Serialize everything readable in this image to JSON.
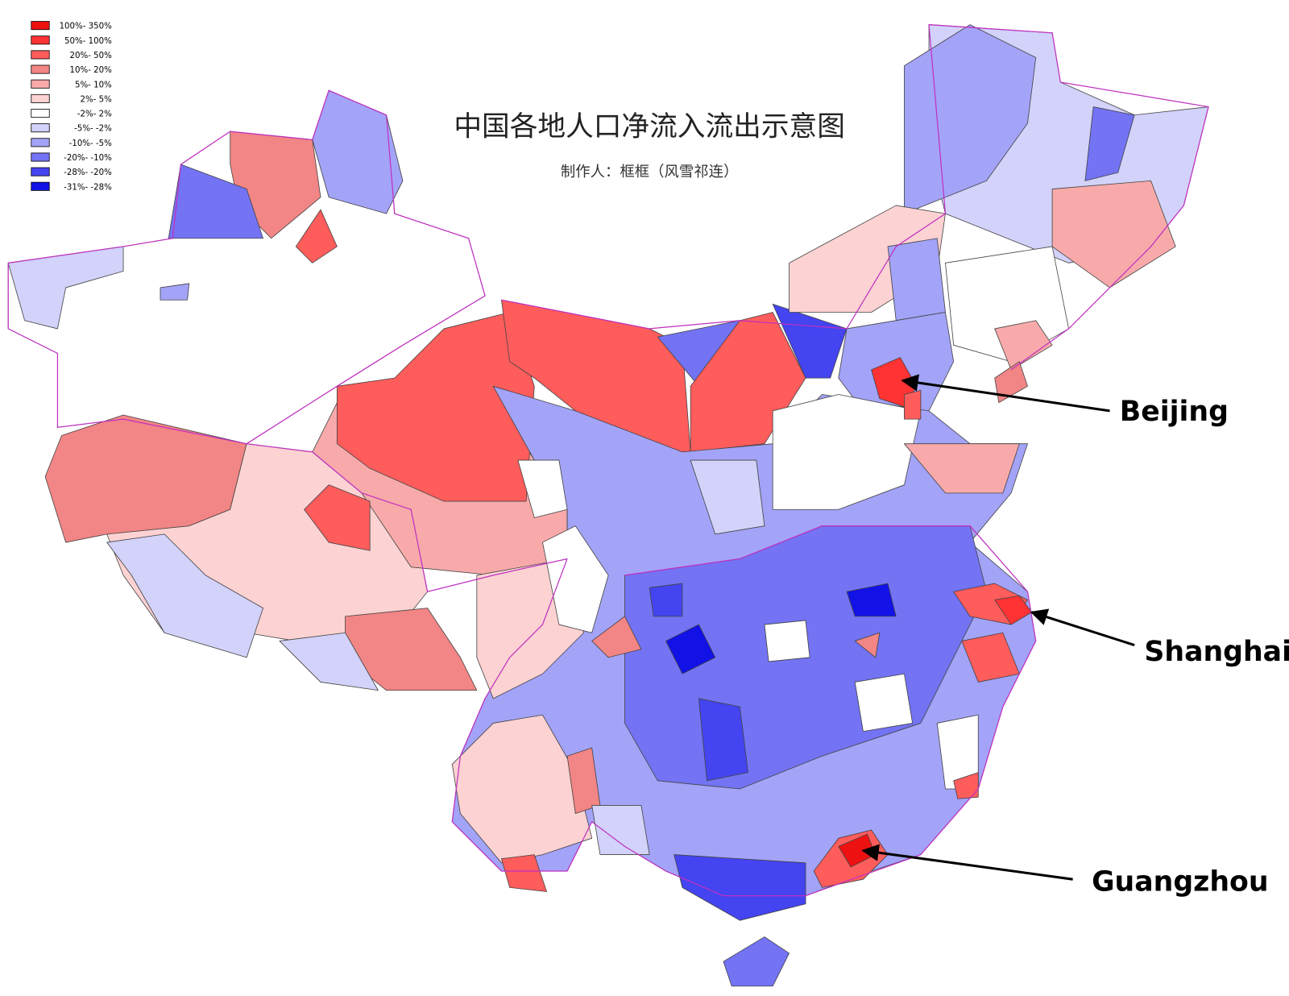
{
  "title": "中国各地人口净流入流出示意图",
  "subtitle": "制作人：框框（风雪祁连）",
  "legend": {
    "items": [
      {
        "label": "100%- 350%",
        "color": "#ee1111"
      },
      {
        "label": "50%- 100%",
        "color": "#ff3333"
      },
      {
        "label": "20%- 50%",
        "color": "#ff5c5c"
      },
      {
        "label": "10%- 20%",
        "color": "#f28585"
      },
      {
        "label": "5%- 10%",
        "color": "#f8aaaa"
      },
      {
        "label": "2%- 5%",
        "color": "#fcd2d2"
      },
      {
        "label": "-2%- 2%",
        "color": "#ffffff"
      },
      {
        "label": "-5%- -2%",
        "color": "#d2d2fa"
      },
      {
        "label": "-10%- -5%",
        "color": "#a3a3f8"
      },
      {
        "label": "-20%- -10%",
        "color": "#7373f4"
      },
      {
        "label": "-28%- -20%",
        "color": "#4444f0"
      },
      {
        "label": "-31%- -28%",
        "color": "#1212e6"
      }
    ]
  },
  "annotations": [
    {
      "label": "Beijing"
    },
    {
      "label": "Shanghai"
    },
    {
      "label": "Guangzhou"
    }
  ]
}
